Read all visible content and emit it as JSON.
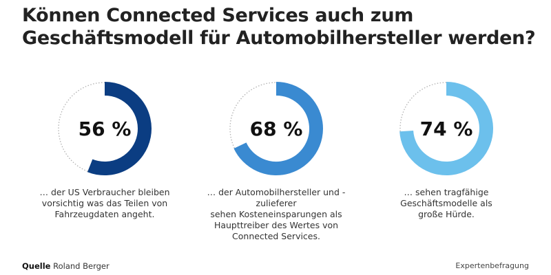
{
  "title": {
    "line1": "Können Connected Services auch zum",
    "line2": "Geschäftsmodell für Automobilhersteller werden?"
  },
  "chart_data": {
    "type": "pie",
    "subtype": "donut-progress",
    "title": "Können Connected Services auch zum Geschäftsmodell für Automobilhersteller werden?",
    "max": 100,
    "items": [
      {
        "value": 56,
        "label": "56 %",
        "color": "#0b3d82",
        "caption": "… der US Verbraucher bleiben vorsichtig was das Teilen von Fahrzeugdaten angeht.",
        "caption_lines": [
          "… der US Verbraucher bleiben",
          "vorsichtig was das Teilen von",
          "Fahrzeugdaten angeht."
        ]
      },
      {
        "value": 68,
        "label": "68 %",
        "color": "#3a8ad1",
        "caption": "… der Automobilhersteller und -zulieferer sehen Kosteneinsparungen als Haupttreiber des Wertes von Connected Services.",
        "caption_lines": [
          "… der Automobilhersteller und -zulieferer",
          "sehen Kosteneinsparungen als",
          "Haupttreiber des Wertes von",
          "Connected Services."
        ]
      },
      {
        "value": 74,
        "label": "74 %",
        "color": "#6cc0ec",
        "caption": "… sehen tragfähige Geschäftsmodelle als große Hürde.",
        "caption_lines": [
          "… sehen tragfähige",
          "Geschäftsmodelle als",
          "große Hürde."
        ]
      }
    ],
    "remainder_style": "dotted-gray",
    "remainder_color": "#b0b0b0"
  },
  "footer": {
    "source_label": "Quelle",
    "source_name": "Roland Berger",
    "method": "Expertenbefragung"
  }
}
